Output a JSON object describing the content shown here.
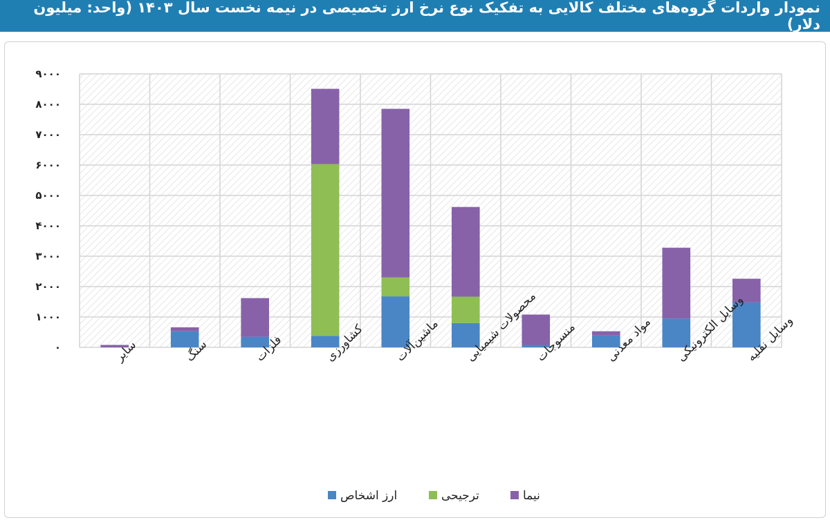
{
  "title": "نمودار واردات گروه‌های مختلف کالایی به تفکیک نوع نرخ ارز تخصیصی در نیمه نخست سال ۱۴۰۳ (واحد: میلیون دلار)",
  "colors": {
    "header_bg": "#1f7fb3",
    "header_text": "#ffffff",
    "arz_ashkhas": "#4a86c6",
    "tarjihi": "#8fbe54",
    "nima": "#8762a8",
    "grid": "#d4d4d4",
    "plot_hatch": "#ececec"
  },
  "chart_data": {
    "type": "bar",
    "stacked": true,
    "categories": [
      "سایر",
      "سنگ",
      "فلزات",
      "کشاورزی",
      "ماشین‌آلات",
      "محصولات شیمیایی",
      "منسوجات",
      "مواد معدنی",
      "وسایل الکترونیکی",
      "وسایل نقلیه"
    ],
    "series": [
      {
        "name": "ارز اشخاص",
        "color": "#4a86c6",
        "values": [
          0,
          530,
          350,
          380,
          1680,
          800,
          80,
          400,
          950,
          1480
        ]
      },
      {
        "name": "ترجیحی",
        "color": "#8fbe54",
        "values": [
          0,
          0,
          0,
          5650,
          620,
          870,
          0,
          0,
          0,
          0
        ]
      },
      {
        "name": "نیما",
        "color": "#8762a8",
        "values": [
          80,
          130,
          1270,
          2480,
          5550,
          2950,
          1000,
          130,
          2330,
          780
        ]
      }
    ],
    "y_ticks": [
      "۰",
      "۱۰۰۰",
      "۲۰۰۰",
      "۳۰۰۰",
      "۴۰۰۰",
      "۵۰۰۰",
      "۶۰۰۰",
      "۷۰۰۰",
      "۸۰۰۰",
      "۹۰۰۰"
    ],
    "ylim": [
      0,
      9000
    ],
    "y_step": 1000,
    "grid": true,
    "legend_position": "bottom-center",
    "legend_order": [
      "ارز اشخاص",
      "ترجیحی",
      "نیما"
    ],
    "xlabel": "",
    "ylabel": ""
  }
}
